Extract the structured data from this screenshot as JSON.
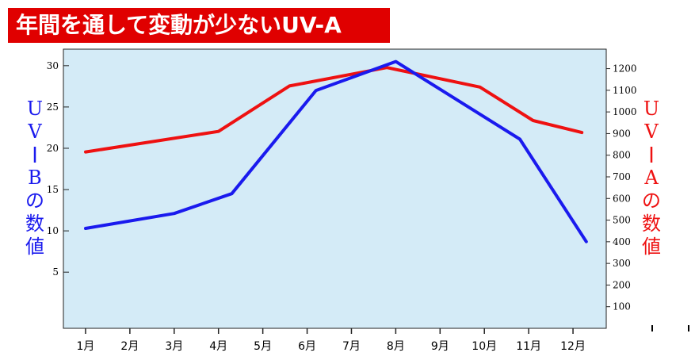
{
  "title": "年間を通して変動が少ないUV-A",
  "colors": {
    "title_bg": "#e00000",
    "plot_bg": "#d4ebf7",
    "uvb": "#1a1aee",
    "uva": "#ee1111"
  },
  "left_axis_label": [
    "U",
    "V",
    "-",
    "B",
    "の",
    "数",
    "値"
  ],
  "right_axis_label": [
    "U",
    "V",
    "-",
    "A",
    "の",
    "数",
    "値"
  ],
  "chart_data": {
    "type": "line",
    "categories": [
      "1月",
      "2月",
      "3月",
      "4月",
      "5月",
      "6月",
      "7月",
      "8月",
      "9月",
      "10月",
      "11月",
      "12月"
    ],
    "series": [
      {
        "axis": "left",
        "color": "#1a1aee",
        "points": [
          {
            "x": 1.0,
            "y": 10.3
          },
          {
            "x": 3.0,
            "y": 12.1
          },
          {
            "x": 4.3,
            "y": 14.5
          },
          {
            "x": 6.2,
            "y": 27.0
          },
          {
            "x": 8.0,
            "y": 30.5
          },
          {
            "x": 10.8,
            "y": 21.1
          },
          {
            "x": 12.3,
            "y": 8.7
          }
        ]
      },
      {
        "axis": "right",
        "color": "#ee1111",
        "points": [
          {
            "x": 1.0,
            "y": 815
          },
          {
            "x": 4.0,
            "y": 910
          },
          {
            "x": 5.6,
            "y": 1120
          },
          {
            "x": 7.8,
            "y": 1205
          },
          {
            "x": 9.9,
            "y": 1115
          },
          {
            "x": 11.1,
            "y": 960
          },
          {
            "x": 12.2,
            "y": 905
          }
        ]
      }
    ],
    "y_left": {
      "ticks": [
        5,
        10,
        15,
        20,
        25,
        30
      ],
      "ylim": [
        -1.8,
        32
      ]
    },
    "y_right": {
      "ticks": [
        100,
        200,
        300,
        400,
        500,
        600,
        700,
        800,
        900,
        1000,
        1100,
        1200
      ],
      "ylim": [
        0,
        1290
      ]
    },
    "xlim": [
      0.5,
      12.75
    ],
    "grid": false
  }
}
